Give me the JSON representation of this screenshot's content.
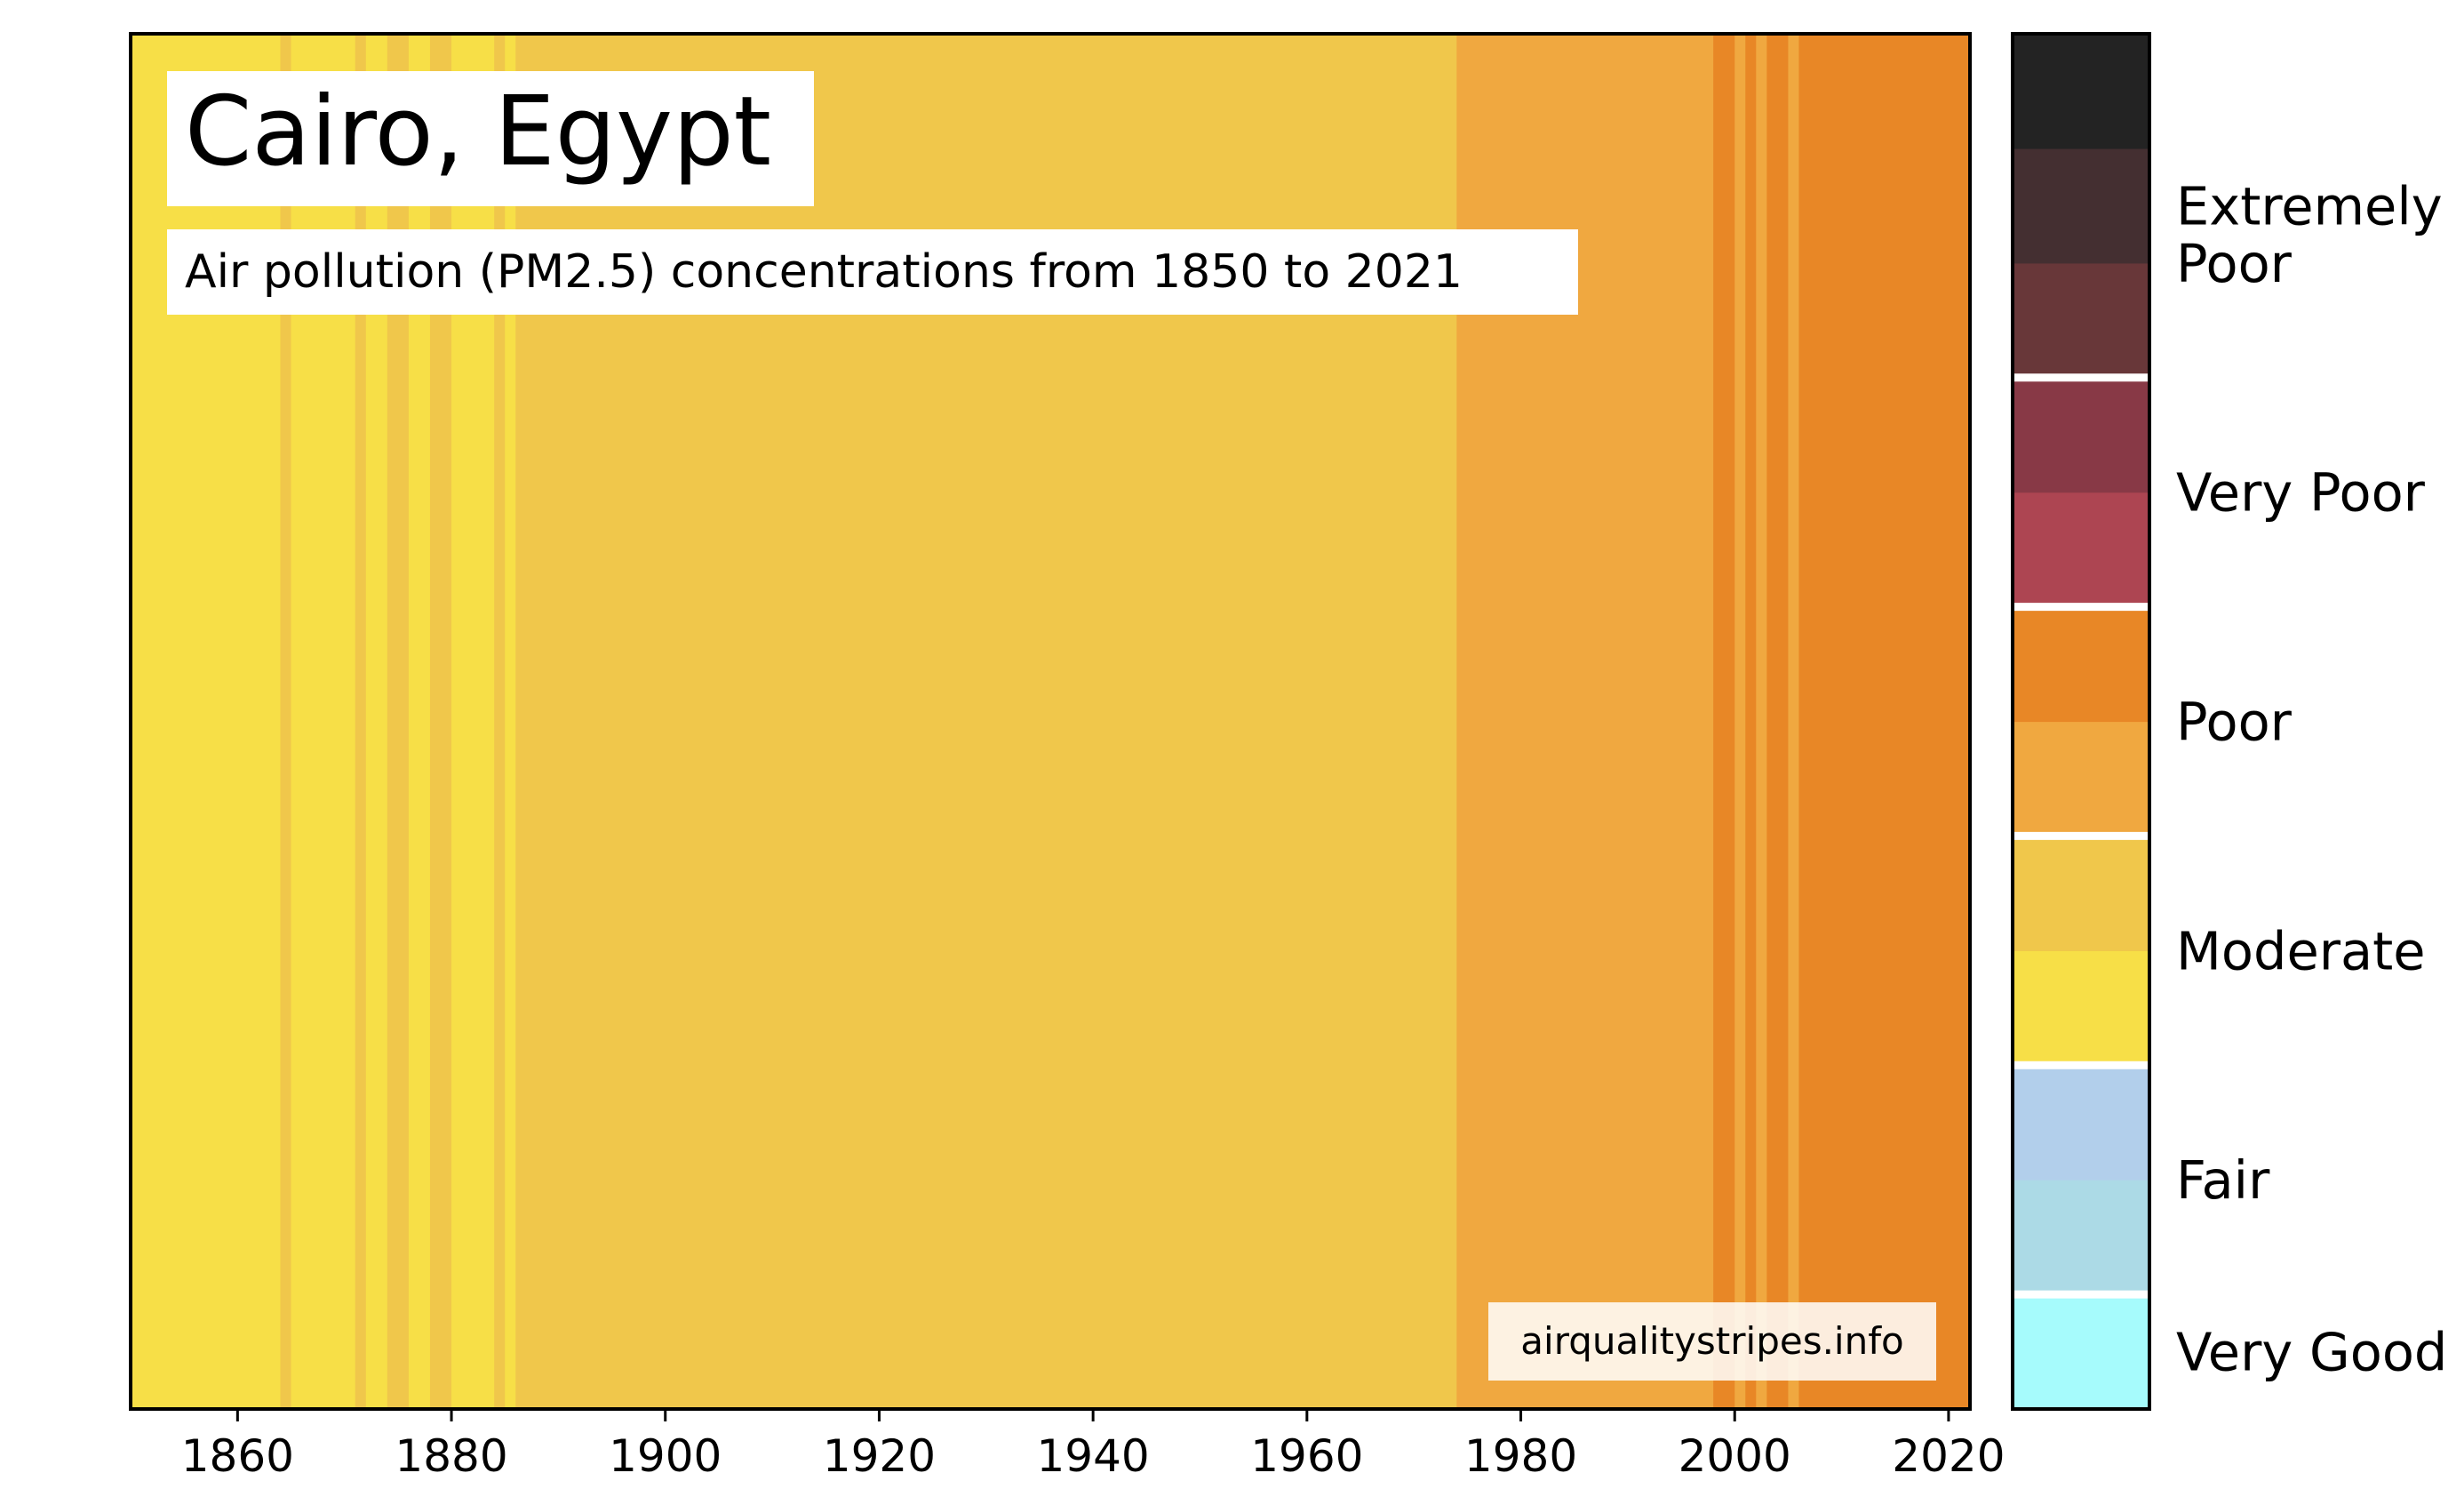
{
  "chart_data": {
    "type": "heatmap",
    "title": "Cairo, Egypt",
    "subtitle": "Air pollution (PM2.5) concentrations from 1850 to 2021",
    "credit": "airqualitystripes.info",
    "xlim": [
      1850,
      2022
    ],
    "x_ticks": [
      "1860",
      "1880",
      "1900",
      "1920",
      "1940",
      "1960",
      "1980",
      "2000",
      "2020"
    ],
    "stripe_palette": {
      "moderate_low": "#f7df47",
      "moderate_high": "#f0c74b",
      "poor_low": "#f0a840",
      "poor_high": "#e88726"
    },
    "stripes": [
      {
        "x0": 1850,
        "x1": 1864,
        "level": "moderate_low"
      },
      {
        "x0": 1864,
        "x1": 1865,
        "level": "moderate_high"
      },
      {
        "x0": 1865,
        "x1": 1871,
        "level": "moderate_low"
      },
      {
        "x0": 1871,
        "x1": 1872,
        "level": "moderate_high"
      },
      {
        "x0": 1872,
        "x1": 1874,
        "level": "moderate_low"
      },
      {
        "x0": 1874,
        "x1": 1876,
        "level": "moderate_high"
      },
      {
        "x0": 1876,
        "x1": 1878,
        "level": "moderate_low"
      },
      {
        "x0": 1878,
        "x1": 1880,
        "level": "moderate_high"
      },
      {
        "x0": 1880,
        "x1": 1884,
        "level": "moderate_low"
      },
      {
        "x0": 1884,
        "x1": 1885,
        "level": "moderate_high"
      },
      {
        "x0": 1885,
        "x1": 1886,
        "level": "moderate_low"
      },
      {
        "x0": 1886,
        "x1": 1974,
        "level": "moderate_high"
      },
      {
        "x0": 1974,
        "x1": 1998,
        "level": "poor_low"
      },
      {
        "x0": 1998,
        "x1": 2000,
        "level": "poor_high"
      },
      {
        "x0": 2000,
        "x1": 2001,
        "level": "poor_low"
      },
      {
        "x0": 2001,
        "x1": 2002,
        "level": "poor_high"
      },
      {
        "x0": 2002,
        "x1": 2003,
        "level": "poor_low"
      },
      {
        "x0": 2003,
        "x1": 2005,
        "level": "poor_high"
      },
      {
        "x0": 2005,
        "x1": 2006,
        "level": "poor_low"
      },
      {
        "x0": 2006,
        "x1": 2022,
        "level": "poor_high"
      }
    ],
    "legend": {
      "swatches": [
        "#a6fbfc",
        "#acdae6",
        "#b2cfeb",
        "#f7df47",
        "#f0c74b",
        "#f0a840",
        "#e88726",
        "#ad4552",
        "#883946",
        "#683739",
        "#442f31",
        "#232323"
      ],
      "separator_after_swatch": [
        0,
        2,
        4,
        6,
        8
      ],
      "labels": [
        {
          "text": "Very Good",
          "swatch": 0
        },
        {
          "text": "Fair",
          "swatch": 1.5
        },
        {
          "text": "Moderate",
          "swatch": 3.5
        },
        {
          "text": "Poor",
          "swatch": 5.5
        },
        {
          "text": "Very Poor",
          "swatch": 7.5
        },
        {
          "text": "Extremely",
          "swatch": 10.0
        },
        {
          "text": "Poor",
          "swatch": 9.5
        }
      ]
    }
  }
}
